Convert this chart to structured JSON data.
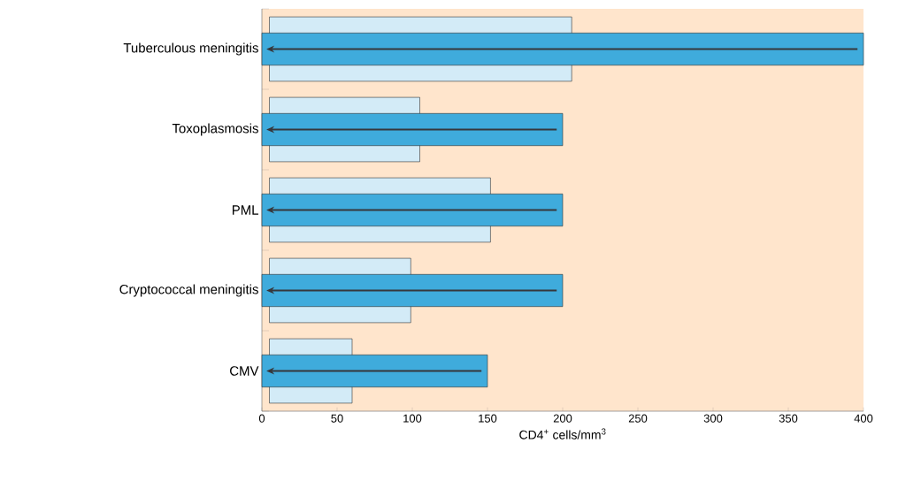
{
  "chart_data": {
    "type": "bar",
    "orientation": "horizontal",
    "categories": [
      "Tuberculous meningitis",
      "Toxoplasmosis",
      "PML",
      "Cryptococcal meningitis",
      "CMV"
    ],
    "series": [
      {
        "color": "#d3ebf7",
        "values": [
          201,
          100,
          147,
          94,
          55
        ],
        "base": [
          5,
          5,
          5,
          5,
          5
        ]
      },
      {
        "color": "#3fabdc",
        "values": [
          400,
          200,
          200,
          200,
          150
        ]
      }
    ],
    "xlim": [
      0,
      400
    ],
    "xticks": [
      0,
      50,
      100,
      150,
      200,
      250,
      300,
      350,
      400
    ],
    "xlabel": "CD4$^{+}$ cells/mm$^{3}$"
  }
}
